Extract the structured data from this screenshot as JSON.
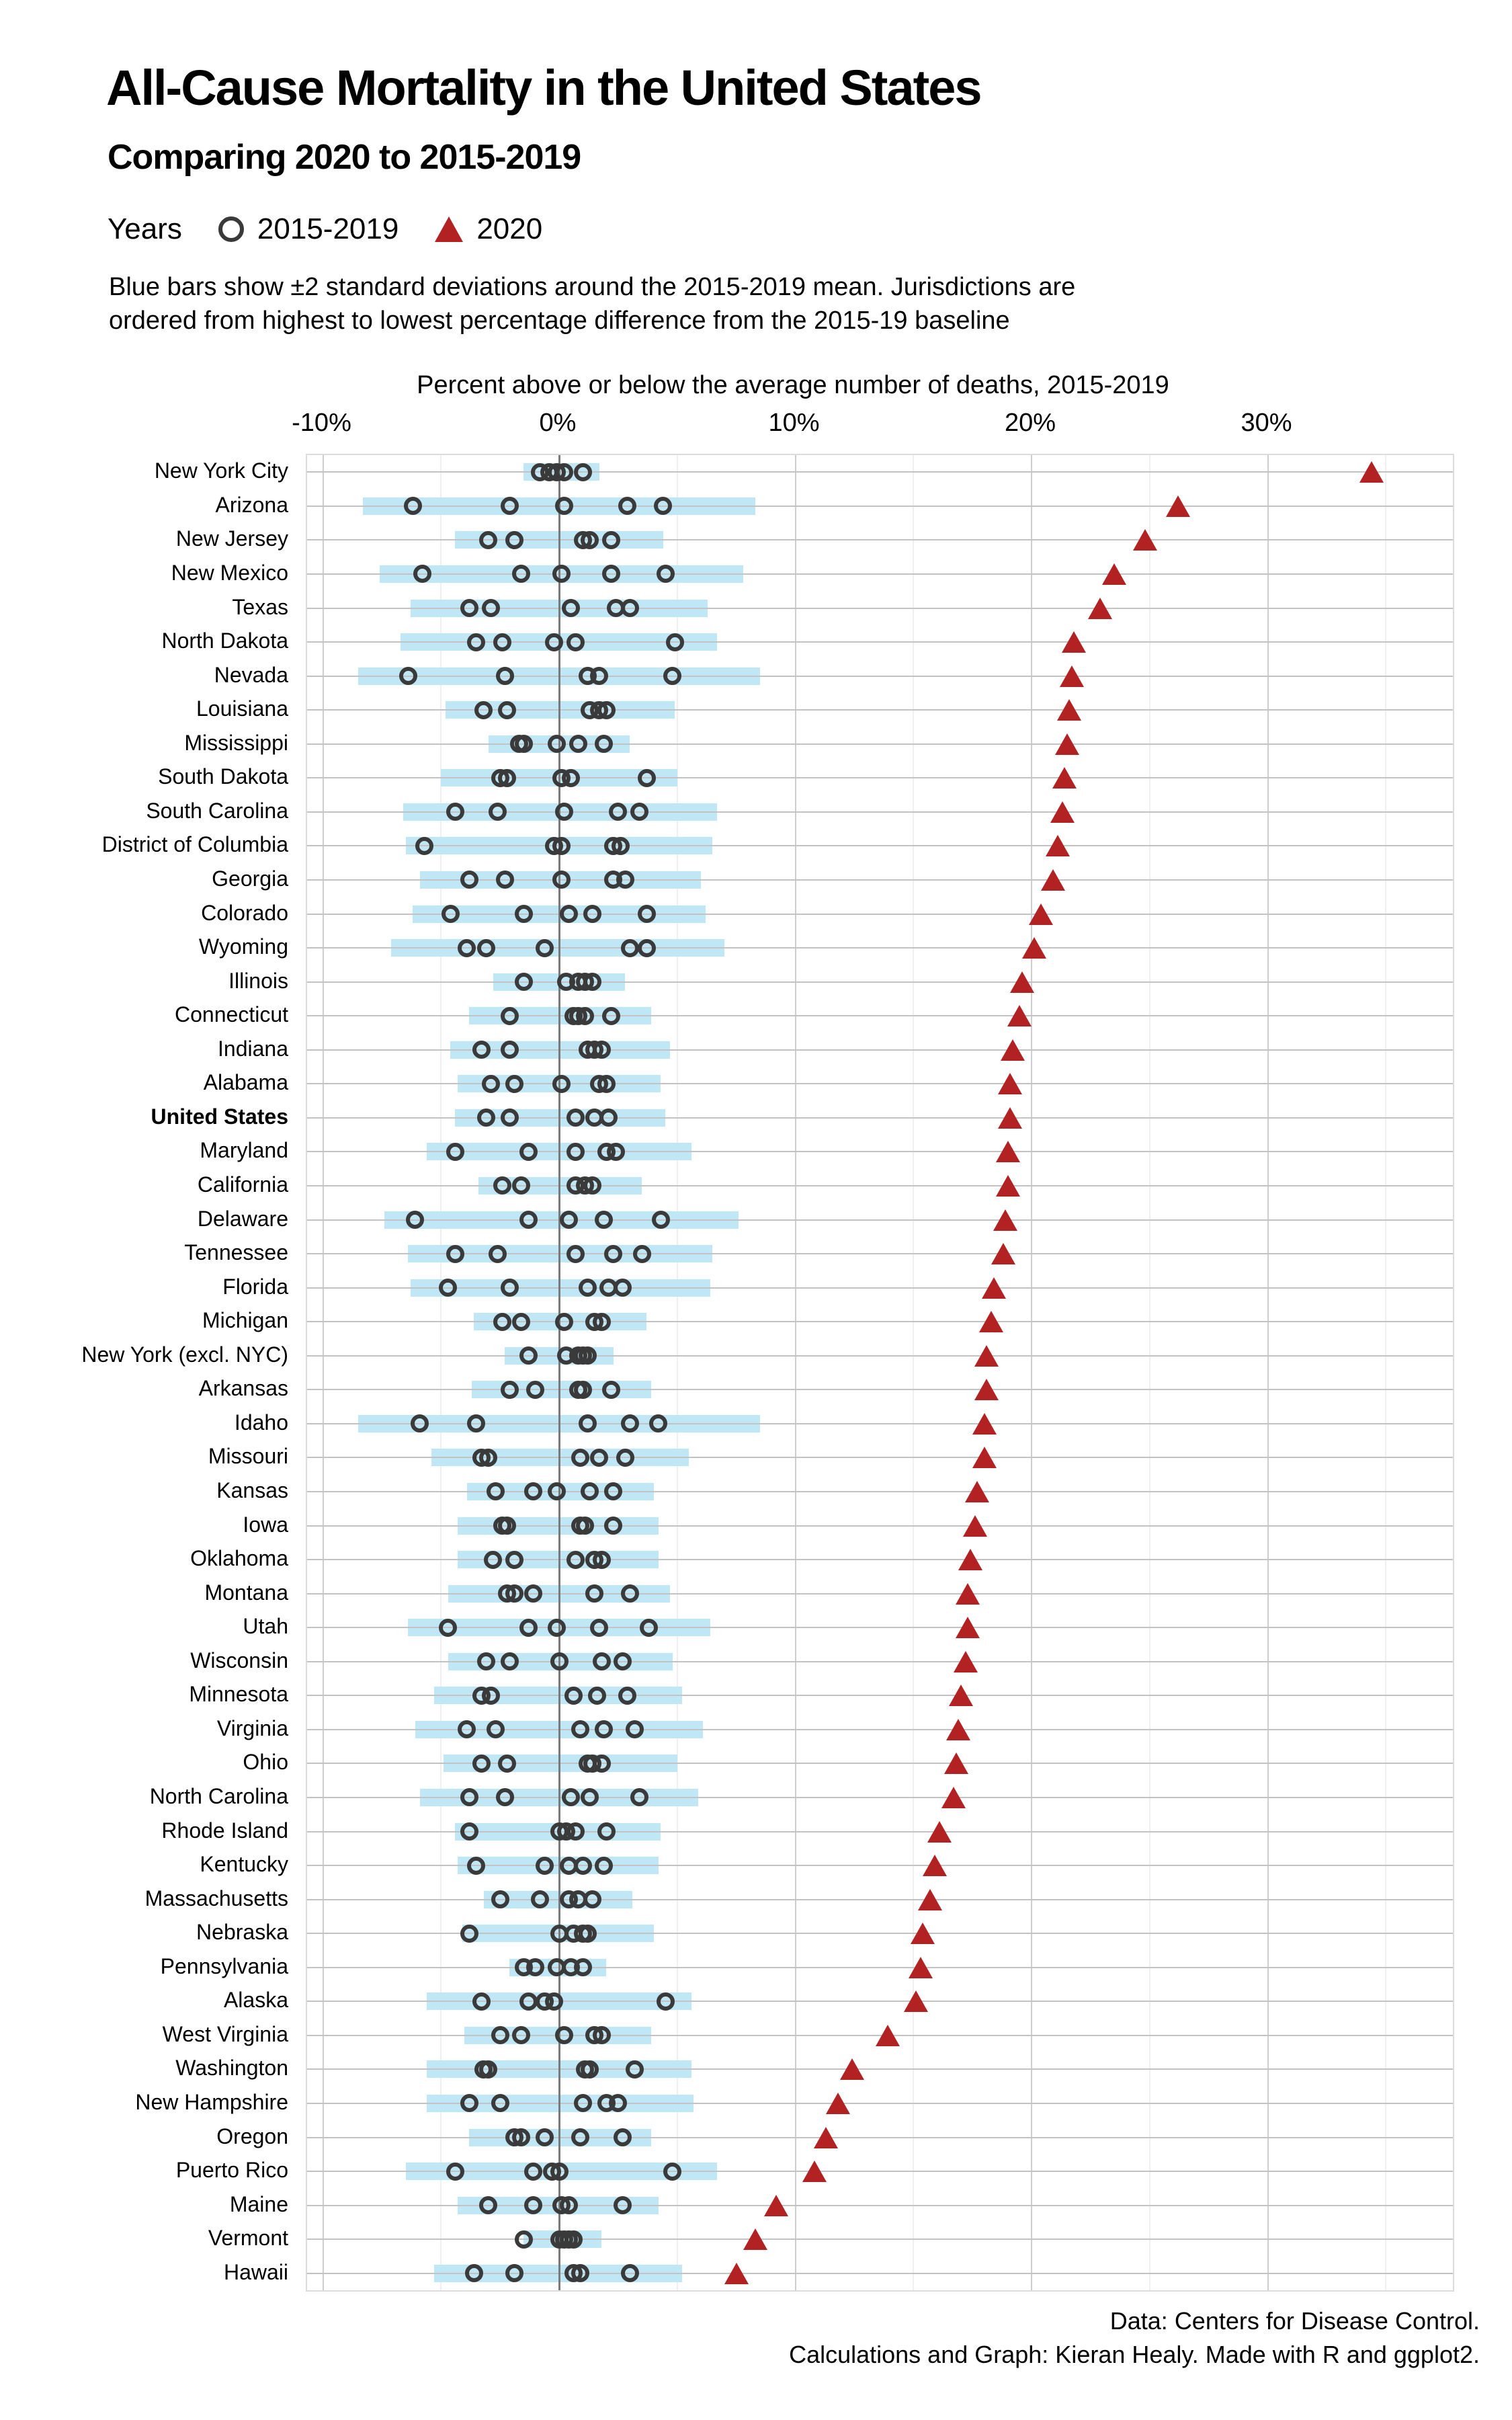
{
  "chart_data": {
    "type": "scatter",
    "subtype": "dot-plot-with-range-bars",
    "title": "All-Cause Mortality in the United States",
    "subtitle": "Comparing 2020 to 2015-2019",
    "legend": {
      "label": "Years",
      "entries": [
        {
          "marker": "open-circle-icon",
          "label": "2015-2019"
        },
        {
          "marker": "triangle-icon",
          "label": "2020"
        }
      ]
    },
    "note_line1": "Blue bars show ±2 standard deviations around the 2015-2019 mean. Jurisdictions are",
    "note_line2": "ordered from highest to lowest percentage difference from the 2015-19 baseline",
    "xlabel": "Percent above or below the average number of deaths, 2015-2019",
    "xlim": [
      -10.7,
      37.8
    ],
    "x_ticks": [
      -10,
      0,
      10,
      20,
      30
    ],
    "x_tick_labels": [
      "-10%",
      "0%",
      "10%",
      "20%",
      "30%"
    ],
    "x_minor": [
      -5,
      5,
      15,
      25,
      35
    ],
    "grid": true,
    "legend_position": "top-left",
    "colors": {
      "bar": "#bfe7f6",
      "point_stroke": "#3a3a3a",
      "triangle": "#b22222",
      "zero_line": "#7a7a7a",
      "row_line": "#c3c3c3",
      "grid_major": "#cdcdcd",
      "grid_minor": "#efefef"
    },
    "caption_line1": "Data: Centers for Disease Control.",
    "caption_line2": "Calculations and Graph: Kieran Healy. Made with R and ggplot2.",
    "rows": [
      {
        "label": "New York City",
        "bar": [
          -1.5,
          1.7
        ],
        "years_2015_2019": [
          -0.8,
          -0.4,
          -0.1,
          0.2,
          1.0
        ],
        "y2020": 34.4
      },
      {
        "label": "Arizona",
        "bar": [
          -8.3,
          8.3
        ],
        "years_2015_2019": [
          -6.2,
          -2.1,
          0.2,
          2.9,
          4.4
        ],
        "y2020": 26.2
      },
      {
        "label": "New Jersey",
        "bar": [
          -4.4,
          4.4
        ],
        "years_2015_2019": [
          -3.0,
          -1.9,
          1.0,
          1.3,
          2.2
        ],
        "y2020": 24.8
      },
      {
        "label": "New Mexico",
        "bar": [
          -7.6,
          7.8
        ],
        "years_2015_2019": [
          -5.8,
          -1.6,
          0.1,
          2.2,
          4.5
        ],
        "y2020": 23.5
      },
      {
        "label": "Texas",
        "bar": [
          -6.3,
          6.3
        ],
        "years_2015_2019": [
          -3.8,
          -2.9,
          0.5,
          2.4,
          3.0
        ],
        "y2020": 22.9
      },
      {
        "label": "North Dakota",
        "bar": [
          -6.7,
          6.7
        ],
        "years_2015_2019": [
          -3.5,
          -2.4,
          -0.2,
          0.7,
          4.9
        ],
        "y2020": 21.8
      },
      {
        "label": "Nevada",
        "bar": [
          -8.5,
          8.5
        ],
        "years_2015_2019": [
          -6.4,
          -2.3,
          1.2,
          1.7,
          4.8
        ],
        "y2020": 21.7
      },
      {
        "label": "Louisiana",
        "bar": [
          -4.8,
          4.9
        ],
        "years_2015_2019": [
          -3.2,
          -2.2,
          1.3,
          1.7,
          2.0
        ],
        "y2020": 21.6
      },
      {
        "label": "Mississippi",
        "bar": [
          -3.0,
          3.0
        ],
        "years_2015_2019": [
          -1.7,
          -1.5,
          -0.1,
          0.8,
          1.9
        ],
        "y2020": 21.5
      },
      {
        "label": "South Dakota",
        "bar": [
          -5.0,
          5.0
        ],
        "years_2015_2019": [
          -2.5,
          -2.2,
          0.1,
          0.5,
          3.7
        ],
        "y2020": 21.4
      },
      {
        "label": "South Carolina",
        "bar": [
          -6.6,
          6.7
        ],
        "years_2015_2019": [
          -4.4,
          -2.6,
          0.2,
          2.5,
          3.4
        ],
        "y2020": 21.3
      },
      {
        "label": "District of Columbia",
        "bar": [
          -6.5,
          6.5
        ],
        "years_2015_2019": [
          -5.7,
          -0.2,
          0.1,
          2.3,
          2.6
        ],
        "y2020": 21.1
      },
      {
        "label": "Georgia",
        "bar": [
          -5.9,
          6.0
        ],
        "years_2015_2019": [
          -3.8,
          -2.3,
          0.1,
          2.3,
          2.8
        ],
        "y2020": 20.9
      },
      {
        "label": "Colorado",
        "bar": [
          -6.2,
          6.2
        ],
        "years_2015_2019": [
          -4.6,
          -1.5,
          0.4,
          1.4,
          3.7
        ],
        "y2020": 20.4
      },
      {
        "label": "Wyoming",
        "bar": [
          -7.1,
          7.0
        ],
        "years_2015_2019": [
          -3.9,
          -3.1,
          -0.6,
          3.0,
          3.7
        ],
        "y2020": 20.1
      },
      {
        "label": "Illinois",
        "bar": [
          -2.8,
          2.8
        ],
        "years_2015_2019": [
          -1.5,
          0.3,
          0.8,
          1.1,
          1.4
        ],
        "y2020": 19.6
      },
      {
        "label": "Connecticut",
        "bar": [
          -3.8,
          3.9
        ],
        "years_2015_2019": [
          -2.1,
          0.6,
          0.8,
          1.1,
          2.2
        ],
        "y2020": 19.5
      },
      {
        "label": "Indiana",
        "bar": [
          -4.6,
          4.7
        ],
        "years_2015_2019": [
          -3.3,
          -2.1,
          1.2,
          1.5,
          1.8
        ],
        "y2020": 19.2
      },
      {
        "label": "Alabama",
        "bar": [
          -4.3,
          4.3
        ],
        "years_2015_2019": [
          -2.9,
          -1.9,
          0.1,
          1.7,
          2.0
        ],
        "y2020": 19.1
      },
      {
        "label": "United States",
        "bold": true,
        "bar": [
          -4.4,
          4.5
        ],
        "years_2015_2019": [
          -3.1,
          -2.1,
          0.7,
          1.5,
          2.1
        ],
        "y2020": 19.1
      },
      {
        "label": "Maryland",
        "bar": [
          -5.6,
          5.6
        ],
        "years_2015_2019": [
          -4.4,
          -1.3,
          0.7,
          2.0,
          2.4
        ],
        "y2020": 19.0
      },
      {
        "label": "California",
        "bar": [
          -3.4,
          3.5
        ],
        "years_2015_2019": [
          -2.4,
          -1.6,
          0.7,
          1.1,
          1.4
        ],
        "y2020": 19.0
      },
      {
        "label": "Delaware",
        "bar": [
          -7.4,
          7.6
        ],
        "years_2015_2019": [
          -6.1,
          -1.3,
          0.4,
          1.9,
          4.3
        ],
        "y2020": 18.9
      },
      {
        "label": "Tennessee",
        "bar": [
          -6.4,
          6.5
        ],
        "years_2015_2019": [
          -4.4,
          -2.6,
          0.7,
          2.3,
          3.5
        ],
        "y2020": 18.8
      },
      {
        "label": "Florida",
        "bar": [
          -6.3,
          6.4
        ],
        "years_2015_2019": [
          -4.7,
          -2.1,
          1.2,
          2.1,
          2.7
        ],
        "y2020": 18.4
      },
      {
        "label": "Michigan",
        "bar": [
          -3.6,
          3.7
        ],
        "years_2015_2019": [
          -2.4,
          -1.6,
          0.2,
          1.5,
          1.8
        ],
        "y2020": 18.3
      },
      {
        "label": "New York (excl. NYC)",
        "bar": [
          -2.3,
          2.3
        ],
        "years_2015_2019": [
          -1.3,
          0.3,
          0.8,
          1.0,
          1.2
        ],
        "y2020": 18.1
      },
      {
        "label": "Arkansas",
        "bar": [
          -3.7,
          3.9
        ],
        "years_2015_2019": [
          -2.1,
          -1.0,
          0.8,
          1.0,
          2.2
        ],
        "y2020": 18.1
      },
      {
        "label": "Idaho",
        "bar": [
          -8.5,
          8.5
        ],
        "years_2015_2019": [
          -5.9,
          -3.5,
          1.2,
          3.0,
          4.2
        ],
        "y2020": 18.0
      },
      {
        "label": "Missouri",
        "bar": [
          -5.4,
          5.5
        ],
        "years_2015_2019": [
          -3.3,
          -3.0,
          0.9,
          1.7,
          2.8
        ],
        "y2020": 18.0
      },
      {
        "label": "Kansas",
        "bar": [
          -3.9,
          4.0
        ],
        "years_2015_2019": [
          -2.7,
          -1.1,
          -0.1,
          1.3,
          2.3
        ],
        "y2020": 17.7
      },
      {
        "label": "Iowa",
        "bar": [
          -4.3,
          4.2
        ],
        "years_2015_2019": [
          -2.4,
          -2.2,
          0.9,
          1.1,
          2.3
        ],
        "y2020": 17.6
      },
      {
        "label": "Oklahoma",
        "bar": [
          -4.3,
          4.2
        ],
        "years_2015_2019": [
          -2.8,
          -1.9,
          0.7,
          1.5,
          1.8
        ],
        "y2020": 17.4
      },
      {
        "label": "Montana",
        "bar": [
          -4.7,
          4.7
        ],
        "years_2015_2019": [
          -2.2,
          -1.9,
          -1.1,
          1.5,
          3.0
        ],
        "y2020": 17.3
      },
      {
        "label": "Utah",
        "bar": [
          -6.4,
          6.4
        ],
        "years_2015_2019": [
          -4.7,
          -1.3,
          -0.1,
          1.7,
          3.8
        ],
        "y2020": 17.3
      },
      {
        "label": "Wisconsin",
        "bar": [
          -4.7,
          4.8
        ],
        "years_2015_2019": [
          -3.1,
          -2.1,
          0.0,
          1.8,
          2.7
        ],
        "y2020": 17.2
      },
      {
        "label": "Minnesota",
        "bar": [
          -5.3,
          5.2
        ],
        "years_2015_2019": [
          -3.3,
          -2.9,
          0.6,
          1.6,
          2.9
        ],
        "y2020": 17.0
      },
      {
        "label": "Virginia",
        "bar": [
          -6.1,
          6.1
        ],
        "years_2015_2019": [
          -3.9,
          -2.7,
          0.9,
          1.9,
          3.2
        ],
        "y2020": 16.9
      },
      {
        "label": "Ohio",
        "bar": [
          -4.9,
          5.0
        ],
        "years_2015_2019": [
          -3.3,
          -2.2,
          1.2,
          1.4,
          1.8
        ],
        "y2020": 16.8
      },
      {
        "label": "North Carolina",
        "bar": [
          -5.9,
          5.9
        ],
        "years_2015_2019": [
          -3.8,
          -2.3,
          0.5,
          1.3,
          3.4
        ],
        "y2020": 16.7
      },
      {
        "label": "Rhode Island",
        "bar": [
          -4.4,
          4.3
        ],
        "years_2015_2019": [
          -3.8,
          0.0,
          0.3,
          0.7,
          2.0
        ],
        "y2020": 16.1
      },
      {
        "label": "Kentucky",
        "bar": [
          -4.3,
          4.2
        ],
        "years_2015_2019": [
          -3.5,
          -0.6,
          0.4,
          1.0,
          1.9
        ],
        "y2020": 15.9
      },
      {
        "label": "Massachusetts",
        "bar": [
          -3.2,
          3.1
        ],
        "years_2015_2019": [
          -2.5,
          -0.8,
          0.4,
          0.8,
          1.4
        ],
        "y2020": 15.7
      },
      {
        "label": "Nebraska",
        "bar": [
          -4.1,
          4.0
        ],
        "years_2015_2019": [
          -3.8,
          0.0,
          0.6,
          1.0,
          1.2
        ],
        "y2020": 15.4
      },
      {
        "label": "Pennsylvania",
        "bar": [
          -2.1,
          2.0
        ],
        "years_2015_2019": [
          -1.5,
          -1.0,
          -0.1,
          0.5,
          1.0
        ],
        "y2020": 15.3
      },
      {
        "label": "Alaska",
        "bar": [
          -5.6,
          5.6
        ],
        "years_2015_2019": [
          -3.3,
          -1.3,
          -0.6,
          -0.2,
          4.5
        ],
        "y2020": 15.1
      },
      {
        "label": "West Virginia",
        "bar": [
          -4.0,
          3.9
        ],
        "years_2015_2019": [
          -2.5,
          -1.6,
          0.2,
          1.5,
          1.8
        ],
        "y2020": 13.9
      },
      {
        "label": "Washington",
        "bar": [
          -5.6,
          5.6
        ],
        "years_2015_2019": [
          -3.2,
          -3.0,
          1.1,
          1.3,
          3.2
        ],
        "y2020": 12.4
      },
      {
        "label": "New Hampshire",
        "bar": [
          -5.6,
          5.7
        ],
        "years_2015_2019": [
          -3.8,
          -2.5,
          1.0,
          2.0,
          2.5
        ],
        "y2020": 11.8
      },
      {
        "label": "Oregon",
        "bar": [
          -3.8,
          3.9
        ],
        "years_2015_2019": [
          -1.9,
          -1.6,
          -0.6,
          0.9,
          2.7
        ],
        "y2020": 11.3
      },
      {
        "label": "Puerto Rico",
        "bar": [
          -6.5,
          6.7
        ],
        "years_2015_2019": [
          -4.4,
          -1.1,
          -0.3,
          0.0,
          4.8
        ],
        "y2020": 10.8
      },
      {
        "label": "Maine",
        "bar": [
          -4.3,
          4.2
        ],
        "years_2015_2019": [
          -3.0,
          -1.1,
          0.1,
          0.4,
          2.7
        ],
        "y2020": 9.2
      },
      {
        "label": "Vermont",
        "bar": [
          -1.5,
          1.8
        ],
        "years_2015_2019": [
          -1.5,
          0.0,
          0.2,
          0.4,
          0.6
        ],
        "y2020": 8.3
      },
      {
        "label": "Hawaii",
        "bar": [
          -5.3,
          5.2
        ],
        "years_2015_2019": [
          -3.6,
          -1.9,
          0.6,
          0.9,
          3.0
        ],
        "y2020": 7.5
      }
    ]
  }
}
